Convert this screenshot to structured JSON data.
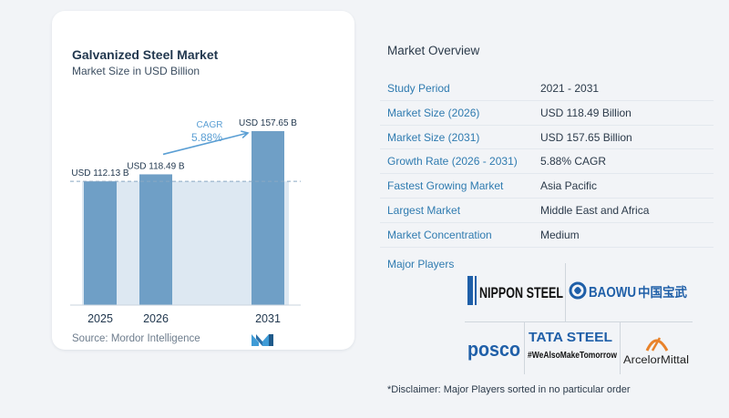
{
  "chart_data": {
    "type": "bar",
    "title": "Galvanized Steel Market",
    "subtitle": "Market Size in USD Billion",
    "categories": [
      "2025",
      "2026",
      "2031"
    ],
    "values": [
      112.13,
      118.49,
      157.65
    ],
    "data_labels": [
      "USD 112.13 B",
      "USD 118.49 B",
      "USD 157.65 B"
    ],
    "cagr_label": "CAGR",
    "cagr_value": "5.88%",
    "baseline_value": 112.13,
    "ylim": [
      0,
      157.65
    ],
    "grid": false,
    "colors": {
      "bar": "#6f9fc6",
      "bar_top": "#5b8db8",
      "band": "#dde8f2",
      "arrow": "#5b9fd4",
      "cagr_text": "#5b9fd4"
    }
  },
  "source": {
    "text": "Source:  Mordor Intelligence",
    "logo_icon": "mordor-intelligence-logo-icon"
  },
  "overview": {
    "title": "Market Overview",
    "rows": [
      {
        "label": "Study Period",
        "value": "2021 - 2031"
      },
      {
        "label": "Market Size (2026)",
        "value": "USD 118.49 Billion"
      },
      {
        "label": "Market Size (2031)",
        "value": "USD 157.65 Billion"
      },
      {
        "label": "Growth Rate (2026 - 2031)",
        "value": "5.88% CAGR"
      },
      {
        "label": "Fastest Growing Market",
        "value": "Asia Pacific"
      },
      {
        "label": "Largest Market",
        "value": "Middle East and Africa"
      },
      {
        "label": "Market Concentration",
        "value": "Medium"
      }
    ],
    "players_label": "Major Players",
    "players": [
      {
        "name": "NIPPON STEEL",
        "icon": "nippon-steel-logo"
      },
      {
        "name": "BAOWU",
        "name_cn": "中国宝武",
        "icon": "baowu-logo"
      },
      {
        "name": "posco",
        "icon": "posco-logo"
      },
      {
        "name": "TATA STEEL",
        "tagline": "#WeAlsoMakeTomorrow",
        "icon": "tata-steel-logo"
      },
      {
        "name": "ArcelorMittal",
        "icon": "arcelormittal-logo"
      }
    ],
    "disclaimer": "*Disclaimer: Major Players sorted in no particular order"
  },
  "colors": {
    "accent": "#2f7bb0",
    "card_bg": "#ffffff",
    "page_bg": "#f2f4f7"
  }
}
